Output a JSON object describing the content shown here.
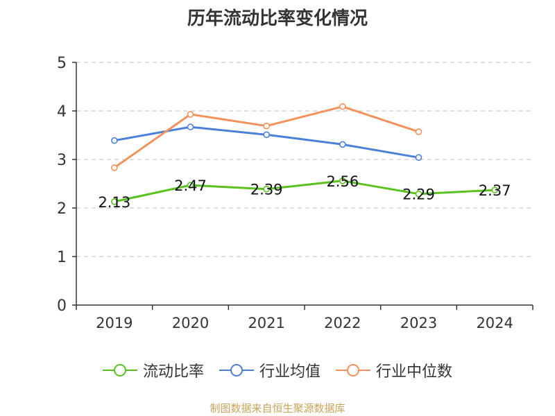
{
  "source_note": "制图数据来自恒生聚源数据库",
  "chart_data": {
    "type": "line",
    "title": "历年流动比率变化情况",
    "xlabel": "",
    "ylabel": "",
    "categories": [
      "2019",
      "2020",
      "2021",
      "2022",
      "2023",
      "2024"
    ],
    "ylim": [
      0,
      5
    ],
    "yticks": [
      0,
      1,
      2,
      3,
      4,
      5
    ],
    "grid": true,
    "grid_style": "dashed",
    "legend_position": "bottom",
    "series": [
      {
        "name": "流动比率",
        "color": "#5ac11f",
        "values": [
          2.13,
          2.47,
          2.39,
          2.56,
          2.29,
          2.37
        ],
        "labels": [
          "2.13",
          "2.47",
          "2.39",
          "2.56",
          "2.29",
          "2.37"
        ]
      },
      {
        "name": "行业均值",
        "color": "#4a80d9",
        "values": [
          3.39,
          3.67,
          3.51,
          3.31,
          3.04,
          null
        ]
      },
      {
        "name": "行业中位数",
        "color": "#f5915a",
        "values": [
          2.83,
          3.93,
          3.69,
          4.09,
          3.57,
          null
        ]
      }
    ]
  }
}
